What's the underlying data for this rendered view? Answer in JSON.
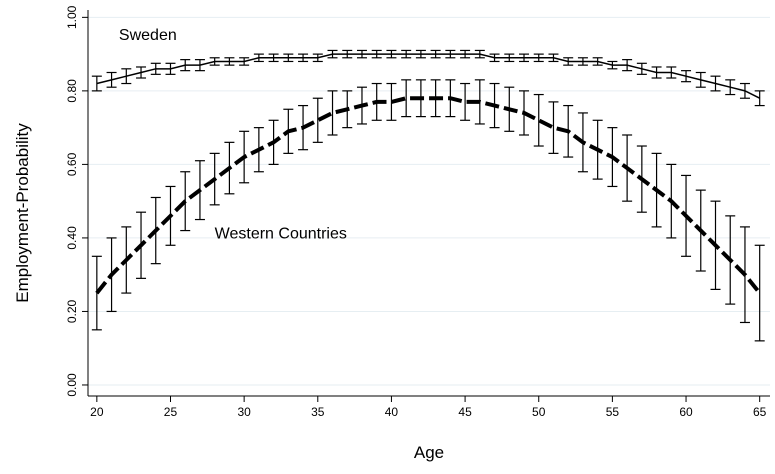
{
  "chart_data": {
    "type": "line",
    "x_label": "Age",
    "y_label": "Employment-Probability",
    "x": [
      20,
      21,
      22,
      23,
      24,
      25,
      26,
      27,
      28,
      29,
      30,
      31,
      32,
      33,
      34,
      35,
      36,
      37,
      38,
      39,
      40,
      41,
      42,
      43,
      44,
      45,
      46,
      47,
      48,
      49,
      50,
      51,
      52,
      53,
      54,
      55,
      56,
      57,
      58,
      59,
      60,
      61,
      62,
      63,
      64,
      65
    ],
    "series": [
      {
        "name": "Sweden",
        "color": "#000000",
        "dash": false,
        "values": [
          0.82,
          0.83,
          0.84,
          0.85,
          0.86,
          0.86,
          0.87,
          0.87,
          0.88,
          0.88,
          0.88,
          0.89,
          0.89,
          0.89,
          0.89,
          0.89,
          0.9,
          0.9,
          0.9,
          0.9,
          0.9,
          0.9,
          0.9,
          0.9,
          0.9,
          0.9,
          0.9,
          0.89,
          0.89,
          0.89,
          0.89,
          0.89,
          0.88,
          0.88,
          0.88,
          0.87,
          0.87,
          0.86,
          0.85,
          0.85,
          0.84,
          0.83,
          0.82,
          0.81,
          0.8,
          0.78
        ],
        "errors": [
          0.02,
          0.02,
          0.02,
          0.015,
          0.015,
          0.015,
          0.015,
          0.015,
          0.01,
          0.01,
          0.01,
          0.01,
          0.01,
          0.01,
          0.01,
          0.01,
          0.01,
          0.01,
          0.01,
          0.01,
          0.01,
          0.01,
          0.01,
          0.01,
          0.01,
          0.01,
          0.01,
          0.01,
          0.01,
          0.01,
          0.01,
          0.01,
          0.01,
          0.01,
          0.01,
          0.01,
          0.015,
          0.015,
          0.015,
          0.015,
          0.015,
          0.02,
          0.02,
          0.02,
          0.02,
          0.02
        ]
      },
      {
        "name": "Western Countries",
        "color": "#000000",
        "dash": true,
        "values": [
          0.25,
          0.3,
          0.34,
          0.38,
          0.42,
          0.46,
          0.5,
          0.53,
          0.56,
          0.59,
          0.62,
          0.64,
          0.66,
          0.69,
          0.7,
          0.72,
          0.74,
          0.75,
          0.76,
          0.77,
          0.77,
          0.78,
          0.78,
          0.78,
          0.78,
          0.77,
          0.77,
          0.76,
          0.75,
          0.74,
          0.72,
          0.7,
          0.69,
          0.66,
          0.64,
          0.62,
          0.59,
          0.56,
          0.53,
          0.5,
          0.46,
          0.42,
          0.38,
          0.34,
          0.3,
          0.25
        ],
        "errors": [
          0.1,
          0.1,
          0.09,
          0.09,
          0.09,
          0.08,
          0.08,
          0.08,
          0.07,
          0.07,
          0.07,
          0.06,
          0.06,
          0.06,
          0.06,
          0.06,
          0.06,
          0.05,
          0.05,
          0.05,
          0.05,
          0.05,
          0.05,
          0.05,
          0.05,
          0.05,
          0.06,
          0.06,
          0.06,
          0.06,
          0.07,
          0.07,
          0.07,
          0.08,
          0.08,
          0.08,
          0.09,
          0.09,
          0.1,
          0.1,
          0.11,
          0.11,
          0.12,
          0.12,
          0.13,
          0.13
        ]
      }
    ],
    "xlim": [
      19.4,
      65.7
    ],
    "xticks": [
      20,
      25,
      30,
      35,
      40,
      45,
      50,
      55,
      60,
      65
    ],
    "ylim": [
      -0.03,
      1.02
    ],
    "yticks": [
      {
        "value": 0,
        "label": "0.00"
      },
      {
        "value": 0.2,
        "label": "0.20"
      },
      {
        "value": 0.4,
        "label": "0.40"
      },
      {
        "value": 0.6,
        "label": "0.60"
      },
      {
        "value": 0.8,
        "label": "0.80"
      },
      {
        "value": 1,
        "label": "1.00"
      }
    ],
    "grid": true
  }
}
